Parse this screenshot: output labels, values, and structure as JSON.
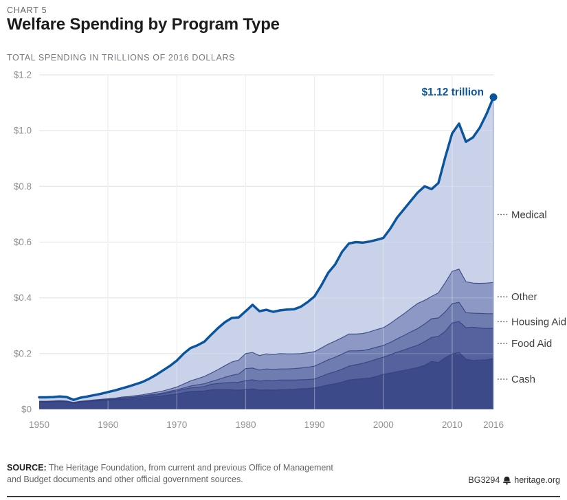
{
  "header": {
    "kicker": "CHART 5",
    "title": "Welfare Spending by Program Type",
    "subtitle": "TOTAL SPENDING IN TRILLIONS OF 2016 DOLLARS"
  },
  "chart_data": {
    "type": "area",
    "stacked": true,
    "title": "Welfare Spending by Program Type",
    "ylabel": "Total spending in trillions of 2016 dollars",
    "xlabel": "Year",
    "xlim": [
      1950,
      2016
    ],
    "ylim": [
      0,
      1.2
    ],
    "grid": true,
    "legend_position": "right-labels",
    "x": [
      1950,
      1951,
      1952,
      1953,
      1954,
      1955,
      1956,
      1957,
      1958,
      1959,
      1960,
      1961,
      1962,
      1963,
      1964,
      1965,
      1966,
      1967,
      1968,
      1969,
      1970,
      1971,
      1972,
      1973,
      1974,
      1975,
      1976,
      1977,
      1978,
      1979,
      1980,
      1981,
      1982,
      1983,
      1984,
      1985,
      1986,
      1987,
      1988,
      1989,
      1990,
      1991,
      1992,
      1993,
      1994,
      1995,
      1996,
      1997,
      1998,
      1999,
      2000,
      2001,
      2002,
      2003,
      2004,
      2005,
      2006,
      2007,
      2008,
      2009,
      2010,
      2011,
      2012,
      2013,
      2014,
      2015,
      2016
    ],
    "series": [
      {
        "name": "Cash",
        "color": "#3c4a89",
        "values": [
          0.026,
          0.026,
          0.027,
          0.028,
          0.027,
          0.022,
          0.026,
          0.028,
          0.03,
          0.031,
          0.033,
          0.034,
          0.036,
          0.037,
          0.039,
          0.042,
          0.044,
          0.046,
          0.049,
          0.052,
          0.055,
          0.06,
          0.064,
          0.065,
          0.066,
          0.07,
          0.071,
          0.071,
          0.07,
          0.069,
          0.071,
          0.073,
          0.069,
          0.07,
          0.069,
          0.07,
          0.071,
          0.072,
          0.074,
          0.075,
          0.077,
          0.082,
          0.088,
          0.092,
          0.098,
          0.105,
          0.108,
          0.11,
          0.112,
          0.118,
          0.126,
          0.13,
          0.135,
          0.14,
          0.145,
          0.15,
          0.158,
          0.172,
          0.168,
          0.185,
          0.199,
          0.204,
          0.18,
          0.175,
          0.177,
          0.178,
          0.182
        ]
      },
      {
        "name": "Food Aid",
        "color": "#55629d",
        "values": [
          0.001,
          0.001,
          0.001,
          0.001,
          0.001,
          0.001,
          0.001,
          0.001,
          0.001,
          0.002,
          0.002,
          0.003,
          0.003,
          0.004,
          0.004,
          0.004,
          0.005,
          0.006,
          0.007,
          0.009,
          0.011,
          0.012,
          0.013,
          0.014,
          0.016,
          0.02,
          0.022,
          0.024,
          0.026,
          0.028,
          0.032,
          0.033,
          0.032,
          0.034,
          0.034,
          0.035,
          0.034,
          0.033,
          0.032,
          0.032,
          0.032,
          0.036,
          0.04,
          0.043,
          0.046,
          0.05,
          0.052,
          0.055,
          0.06,
          0.062,
          0.061,
          0.066,
          0.07,
          0.073,
          0.077,
          0.08,
          0.085,
          0.086,
          0.094,
          0.095,
          0.111,
          0.111,
          0.113,
          0.12,
          0.115,
          0.112,
          0.109
        ]
      },
      {
        "name": "Housing Aid",
        "color": "#6f7cb0",
        "values": [
          0.001,
          0.001,
          0.001,
          0.001,
          0.001,
          0.001,
          0.001,
          0.001,
          0.001,
          0.001,
          0.001,
          0.001,
          0.002,
          0.002,
          0.002,
          0.002,
          0.003,
          0.003,
          0.003,
          0.004,
          0.004,
          0.005,
          0.007,
          0.009,
          0.01,
          0.01,
          0.014,
          0.02,
          0.026,
          0.03,
          0.043,
          0.042,
          0.04,
          0.041,
          0.04,
          0.04,
          0.04,
          0.041,
          0.042,
          0.044,
          0.046,
          0.048,
          0.05,
          0.052,
          0.054,
          0.055,
          0.05,
          0.046,
          0.044,
          0.043,
          0.042,
          0.044,
          0.048,
          0.052,
          0.056,
          0.06,
          0.063,
          0.067,
          0.066,
          0.07,
          0.069,
          0.069,
          0.054,
          0.05,
          0.052,
          0.053,
          0.052
        ]
      },
      {
        "name": "Other",
        "color": "#8d99c4",
        "values": [
          0.001,
          0.001,
          0.001,
          0.001,
          0.001,
          0.001,
          0.001,
          0.001,
          0.002,
          0.002,
          0.002,
          0.002,
          0.003,
          0.003,
          0.004,
          0.004,
          0.005,
          0.006,
          0.007,
          0.008,
          0.01,
          0.014,
          0.018,
          0.022,
          0.026,
          0.03,
          0.036,
          0.042,
          0.048,
          0.05,
          0.054,
          0.056,
          0.052,
          0.054,
          0.054,
          0.055,
          0.054,
          0.053,
          0.052,
          0.052,
          0.052,
          0.054,
          0.056,
          0.058,
          0.059,
          0.06,
          0.06,
          0.061,
          0.062,
          0.063,
          0.064,
          0.068,
          0.073,
          0.078,
          0.084,
          0.09,
          0.085,
          0.08,
          0.09,
          0.105,
          0.116,
          0.119,
          0.111,
          0.108,
          0.108,
          0.11,
          0.112
        ]
      },
      {
        "name": "Medical",
        "color": "#c9d2e9",
        "values": [
          0.014,
          0.014,
          0.014,
          0.015,
          0.014,
          0.009,
          0.013,
          0.015,
          0.017,
          0.02,
          0.024,
          0.028,
          0.031,
          0.036,
          0.041,
          0.046,
          0.053,
          0.063,
          0.074,
          0.083,
          0.095,
          0.109,
          0.118,
          0.12,
          0.125,
          0.138,
          0.149,
          0.156,
          0.158,
          0.153,
          0.152,
          0.171,
          0.159,
          0.158,
          0.153,
          0.155,
          0.159,
          0.16,
          0.168,
          0.182,
          0.198,
          0.225,
          0.256,
          0.275,
          0.308,
          0.325,
          0.33,
          0.326,
          0.324,
          0.322,
          0.322,
          0.34,
          0.362,
          0.375,
          0.386,
          0.398,
          0.409,
          0.385,
          0.394,
          0.45,
          0.495,
          0.522,
          0.502,
          0.522,
          0.558,
          0.607,
          0.665
        ]
      }
    ],
    "total_line": {
      "color": "#0b559e",
      "width": 3.5,
      "endpoint_label": "$1.12 trillion",
      "endpoint_value": 1.12
    },
    "y_ticks": [
      {
        "label": "$1.2",
        "value": 1.2
      },
      {
        "label": "$1.0",
        "value": 1.0
      },
      {
        "label": "$0.8",
        "value": 0.8
      },
      {
        "label": "$0.6",
        "value": 0.6
      },
      {
        "label": "$0.4",
        "value": 0.4
      },
      {
        "label": "$0.2",
        "value": 0.2
      },
      {
        "label": "$0",
        "value": 0
      }
    ],
    "x_ticks": [
      {
        "label": "1950",
        "value": 1950
      },
      {
        "label": "1960",
        "value": 1960
      },
      {
        "label": "1970",
        "value": 1970
      },
      {
        "label": "1980",
        "value": 1980
      },
      {
        "label": "1990",
        "value": 1990
      },
      {
        "label": "2000",
        "value": 2000
      },
      {
        "label": "2010",
        "value": 2010
      },
      {
        "label": "2016",
        "value": 2016
      }
    ],
    "colors": {
      "grid": "#e8e8e8",
      "axis_text": "#909090",
      "category_label": "#3e3e3e",
      "band_stroke": "#2f3e7c",
      "right_edge": "#a9b5d3",
      "leader_dots": "#4a4a4a"
    }
  },
  "footer": {
    "source_bold": "SOURCE:",
    "source_text": "The Heritage Foundation, from current and previous Office of Management and Budget documents and other official government sources.",
    "report_id": "BG3294",
    "site": "heritage.org"
  }
}
